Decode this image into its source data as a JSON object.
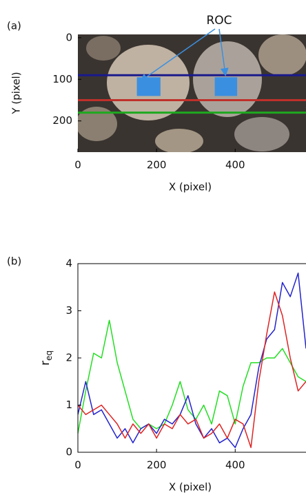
{
  "chart_data": [
    {
      "type": "image",
      "panel_label": "(a)",
      "annotation": "ROC",
      "xlabel": "X (pixel)",
      "ylabel": "Y (pixel)",
      "xlim": [
        0,
        580
      ],
      "ylim": [
        -8,
        275
      ],
      "xticks": [
        0,
        200,
        400
      ],
      "yticks": [
        0,
        100,
        200
      ],
      "y_inverted": true,
      "hlines": [
        {
          "value": 90,
          "color": "#1a1a8c"
        },
        {
          "value": 150,
          "color": "#c0302a"
        },
        {
          "value": 180,
          "color": "#1fa81f"
        }
      ],
      "regions": [
        {
          "x": [
            150,
            210
          ],
          "y": [
            95,
            140
          ],
          "color": "#3b8fe0"
        },
        {
          "x": [
            348,
            405
          ],
          "y": [
            95,
            140
          ],
          "color": "#3b8fe0"
        }
      ]
    },
    {
      "type": "line",
      "panel_label": "(b)",
      "xlabel": "X (pixel)",
      "ylabel": "r",
      "ylabel_subscript": "eq",
      "xlim": [
        0,
        580
      ],
      "ylim": [
        0,
        4
      ],
      "xticks": [
        0,
        200,
        400
      ],
      "yticks": [
        0,
        1,
        2,
        3,
        4
      ],
      "x": [
        0,
        20,
        40,
        60,
        80,
        100,
        120,
        140,
        160,
        180,
        200,
        220,
        240,
        260,
        280,
        300,
        320,
        340,
        360,
        380,
        400,
        420,
        440,
        460,
        480,
        500,
        520,
        540,
        560,
        580
      ],
      "series": [
        {
          "color": "#22dd22",
          "values": [
            0.4,
            1.3,
            2.1,
            2.0,
            2.8,
            1.9,
            1.3,
            0.7,
            0.5,
            0.6,
            0.5,
            0.6,
            1.0,
            1.5,
            0.9,
            0.7,
            1.0,
            0.6,
            1.3,
            1.2,
            0.6,
            1.4,
            1.9,
            1.9,
            2.0,
            2.0,
            2.2,
            1.9,
            1.6,
            1.5
          ]
        },
        {
          "color": "#2222cc",
          "values": [
            0.8,
            1.5,
            0.8,
            0.9,
            0.6,
            0.3,
            0.5,
            0.2,
            0.5,
            0.6,
            0.4,
            0.7,
            0.6,
            0.8,
            1.2,
            0.6,
            0.3,
            0.5,
            0.2,
            0.3,
            0.1,
            0.5,
            0.8,
            1.8,
            2.4,
            2.6,
            3.6,
            3.3,
            3.8,
            2.2
          ]
        },
        {
          "color": "#dd2222",
          "values": [
            1.0,
            0.8,
            0.9,
            1.0,
            0.8,
            0.6,
            0.3,
            0.6,
            0.4,
            0.6,
            0.3,
            0.6,
            0.5,
            0.8,
            0.6,
            0.7,
            0.3,
            0.4,
            0.6,
            0.3,
            0.7,
            0.6,
            0.1,
            1.5,
            2.5,
            3.4,
            2.9,
            2.0,
            1.3,
            1.5
          ]
        }
      ]
    }
  ]
}
